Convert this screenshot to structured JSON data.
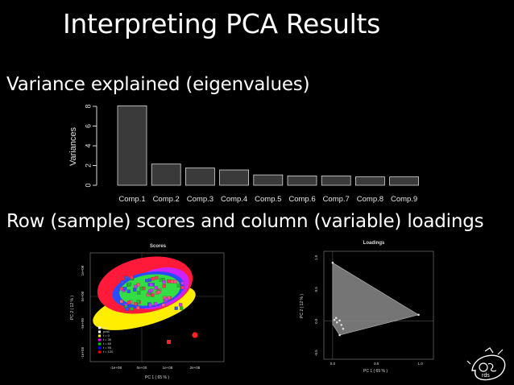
{
  "slide": {
    "title": "Interpreting PCA Results",
    "section1": "Variance explained (eigenvalues)",
    "section2": "Row (sample) scores and column (variable) loadings"
  },
  "chart_data": [
    {
      "type": "bar",
      "categories": [
        "Comp.1",
        "Comp.2",
        "Comp.3",
        "Comp.4",
        "Comp.5",
        "Comp.6",
        "Comp.7",
        "Comp.8",
        "Comp.9"
      ],
      "values": [
        8.05,
        2.15,
        1.75,
        1.55,
        1.05,
        0.95,
        0.95,
        0.85,
        0.85
      ],
      "ylabel": "Variances",
      "ylim": [
        0,
        8
      ],
      "yticks": [
        0,
        2,
        4,
        6,
        8
      ],
      "colors": {
        "bar_fill": "#3a3a3a",
        "bar_stroke": "#d8d8d8",
        "axis": "#d8d8d8"
      }
    },
    {
      "type": "scatter",
      "title": "Scores",
      "xlabel": "PC 1 ( 65 % )",
      "ylabel": "PC 2 ( 12 % )",
      "xticks": [
        "-1e+08",
        "0e+00",
        "1e+08",
        "2e+08"
      ],
      "yticks": [
        "-1e+08",
        "-5e+00",
        "5e+00",
        "1e+08"
      ],
      "legend": [
        "pre",
        "post",
        "t = 0",
        "t = 30",
        "t = 60",
        "t = 90",
        "t = 120"
      ],
      "legend_colors": [
        "#ffffff",
        "#ffffff",
        "#ffff00",
        "#ff00ff",
        "#00cc00",
        "#0000ff",
        "#ff0000"
      ]
    },
    {
      "type": "scatter",
      "title": "Loadings",
      "xlabel": "PC 1 ( 65 % )",
      "ylabel": "PC 2 ( 12 % )",
      "xticks": [
        "0.0",
        "0.5",
        "1.0"
      ],
      "yticks": [
        "-0.5",
        "0.0",
        "0.5",
        "1.0"
      ],
      "xlim": [
        -0.1,
        1.15
      ],
      "ylim": [
        -0.6,
        1.1
      ],
      "hull": [
        [
          0.0,
          0.92
        ],
        [
          0.98,
          0.1
        ],
        [
          0.08,
          -0.22
        ],
        [
          0.0,
          -0.05
        ]
      ],
      "points": [
        [
          0.0,
          0.92
        ],
        [
          0.98,
          0.1
        ],
        [
          0.08,
          -0.22
        ],
        [
          0.02,
          0.02
        ],
        [
          0.05,
          -0.02
        ],
        [
          0.08,
          0.01
        ],
        [
          0.1,
          -0.06
        ],
        [
          0.04,
          0.05
        ],
        [
          0.12,
          -0.12
        ]
      ]
    }
  ]
}
